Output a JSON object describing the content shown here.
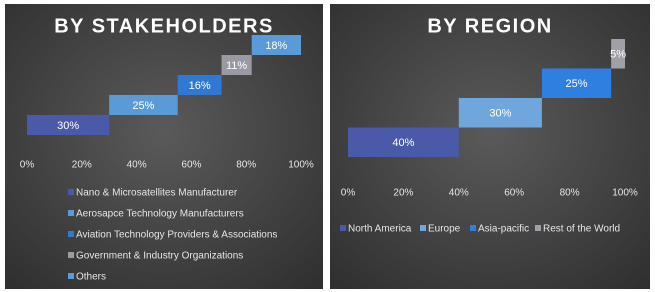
{
  "chart_data": [
    {
      "type": "waterfall",
      "title": "BY STAKEHOLDERS",
      "categories": [
        "Nano & Microsatellites Manufacturer",
        "Aerosapce Technology Manufacturers",
        "Aviation Technology Providers & Associations",
        "Government & Industry Organizations",
        "Others"
      ],
      "values": [
        30,
        25,
        16,
        11,
        18
      ],
      "value_labels": [
        "30%",
        "25%",
        "16%",
        "11%",
        "18%"
      ],
      "colors": [
        "#4a5aa8",
        "#5b9bd5",
        "#2f78d4",
        "#9a9ba2",
        "#5a9ad6"
      ],
      "xlim": [
        0,
        100
      ],
      "xticks": [
        {
          "value": 0,
          "label": "0%"
        },
        {
          "value": 20,
          "label": "20%"
        },
        {
          "value": 40,
          "label": "40%"
        },
        {
          "value": 60,
          "label": "60%"
        },
        {
          "value": 80,
          "label": "80%"
        },
        {
          "value": 100,
          "label": "100%"
        }
      ],
      "legend": "bottom"
    },
    {
      "type": "waterfall",
      "title": "BY REGION",
      "categories": [
        "North America",
        "Europe",
        "Asia-pacific",
        "Rest of the World"
      ],
      "values": [
        40,
        30,
        25,
        5
      ],
      "value_labels": [
        "40%",
        "30%",
        "25%",
        "5%"
      ],
      "colors": [
        "#4a5aa8",
        "#6fa6dc",
        "#2f7fe0",
        "#a0a0a8"
      ],
      "xlim": [
        0,
        100
      ],
      "xticks": [
        {
          "value": 0,
          "label": "0%"
        },
        {
          "value": 20,
          "label": "20%"
        },
        {
          "value": 40,
          "label": "40%"
        },
        {
          "value": 60,
          "label": "60%"
        },
        {
          "value": 80,
          "label": "80%"
        },
        {
          "value": 100,
          "label": "100%"
        }
      ],
      "legend": "bottom"
    }
  ]
}
